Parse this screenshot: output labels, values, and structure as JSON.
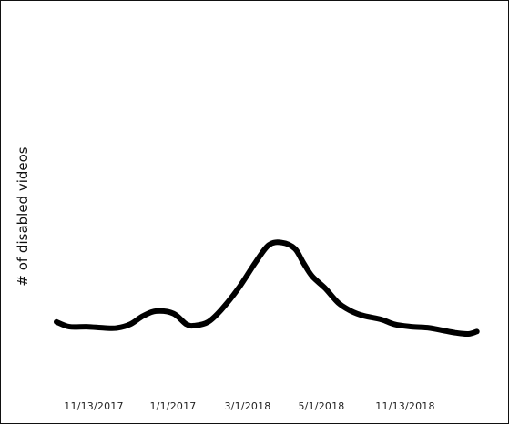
{
  "chart_data": {
    "type": "line",
    "title": "",
    "xlabel": "",
    "ylabel": "# of disabled videos",
    "x_tick_labels": [
      "11/13/2017",
      "1/1/2017",
      "3/1/2018",
      "5/1/2018",
      "11/13/2018"
    ],
    "y_ticks_visible": false,
    "grid": false,
    "legend": "none",
    "series": [
      {
        "color": "#000000",
        "points": [
          {
            "x": 0.0,
            "y": 0.1
          },
          {
            "x": 0.03,
            "y": 0.06
          },
          {
            "x": 0.07,
            "y": 0.06
          },
          {
            "x": 0.11,
            "y": 0.05
          },
          {
            "x": 0.14,
            "y": 0.05
          },
          {
            "x": 0.17,
            "y": 0.08
          },
          {
            "x": 0.2,
            "y": 0.15
          },
          {
            "x": 0.23,
            "y": 0.19
          },
          {
            "x": 0.27,
            "y": 0.17
          },
          {
            "x": 0.3,
            "y": 0.08
          },
          {
            "x": 0.32,
            "y": 0.07
          },
          {
            "x": 0.35,
            "y": 0.1
          },
          {
            "x": 0.38,
            "y": 0.2
          },
          {
            "x": 0.42,
            "y": 0.38
          },
          {
            "x": 0.46,
            "y": 0.6
          },
          {
            "x": 0.49,
            "y": 0.74
          },
          {
            "x": 0.52,
            "y": 0.76
          },
          {
            "x": 0.55,
            "y": 0.71
          },
          {
            "x": 0.57,
            "y": 0.59
          },
          {
            "x": 0.59,
            "y": 0.48
          },
          {
            "x": 0.62,
            "y": 0.38
          },
          {
            "x": 0.65,
            "y": 0.26
          },
          {
            "x": 0.68,
            "y": 0.19
          },
          {
            "x": 0.71,
            "y": 0.15
          },
          {
            "x": 0.75,
            "y": 0.12
          },
          {
            "x": 0.78,
            "y": 0.08
          },
          {
            "x": 0.82,
            "y": 0.06
          },
          {
            "x": 0.86,
            "y": 0.05
          },
          {
            "x": 0.89,
            "y": 0.03
          },
          {
            "x": 0.92,
            "y": 0.01
          },
          {
            "x": 0.95,
            "y": 0.0
          },
          {
            "x": 0.97,
            "y": 0.02
          }
        ]
      }
    ]
  }
}
